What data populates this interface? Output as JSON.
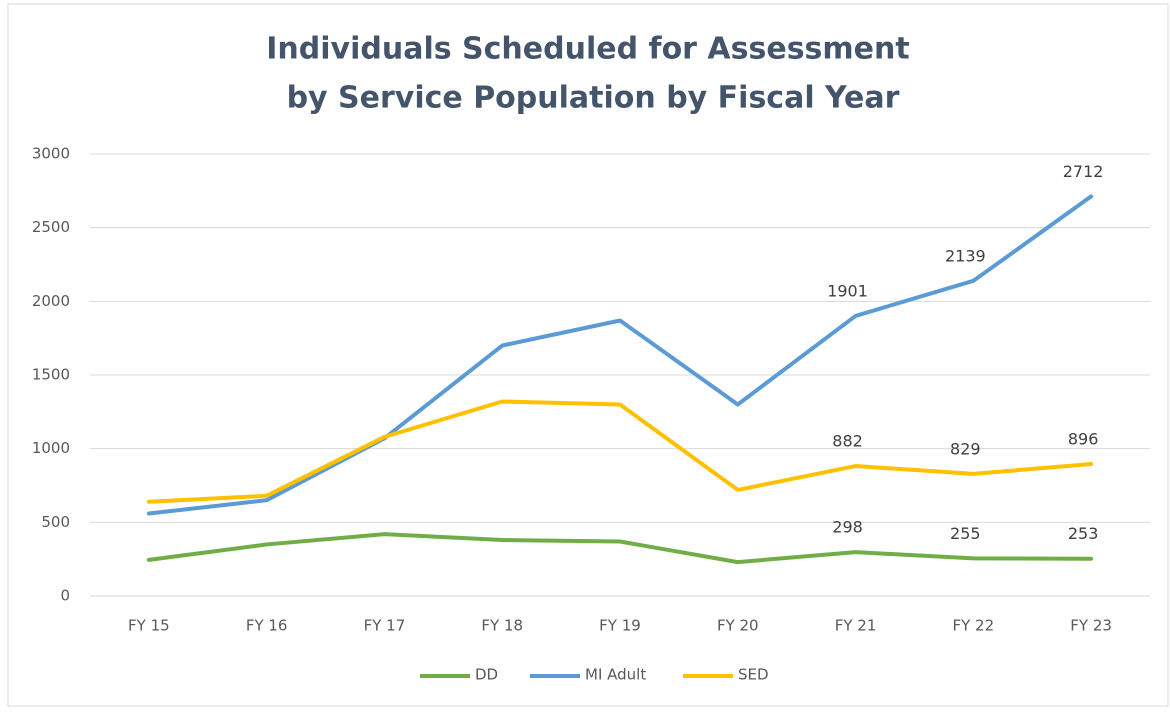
{
  "chart_data": {
    "type": "line",
    "title": [
      "Individuals Scheduled for Assessment",
      "by Service Population by Fiscal Year"
    ],
    "categories": [
      "FY 15",
      "FY 16",
      "FY 17",
      "FY 18",
      "FY 19",
      "FY 20",
      "FY 21",
      "FY 22",
      "FY 23"
    ],
    "series": [
      {
        "name": "DD",
        "color": "#70ad47",
        "values": [
          245,
          350,
          420,
          380,
          370,
          230,
          298,
          255,
          253
        ],
        "value_labels": [
          null,
          null,
          null,
          null,
          null,
          null,
          "298",
          "255",
          "253"
        ]
      },
      {
        "name": "MI Adult",
        "color": "#5b9bd5",
        "values": [
          560,
          650,
          1070,
          1700,
          1870,
          1300,
          1901,
          2139,
          2712
        ],
        "value_labels": [
          null,
          null,
          null,
          null,
          null,
          null,
          "1901",
          "2139",
          "2712"
        ]
      },
      {
        "name": "SED",
        "color": "#ffc000",
        "values": [
          640,
          680,
          1080,
          1320,
          1300,
          720,
          882,
          829,
          896
        ],
        "value_labels": [
          null,
          null,
          null,
          null,
          null,
          null,
          "882",
          "829",
          "896"
        ]
      }
    ],
    "ylim": [
      0,
      3000
    ],
    "yticks": [
      0,
      500,
      1000,
      1500,
      2000,
      2500,
      3000
    ],
    "grid": true,
    "legend": "bottom"
  }
}
